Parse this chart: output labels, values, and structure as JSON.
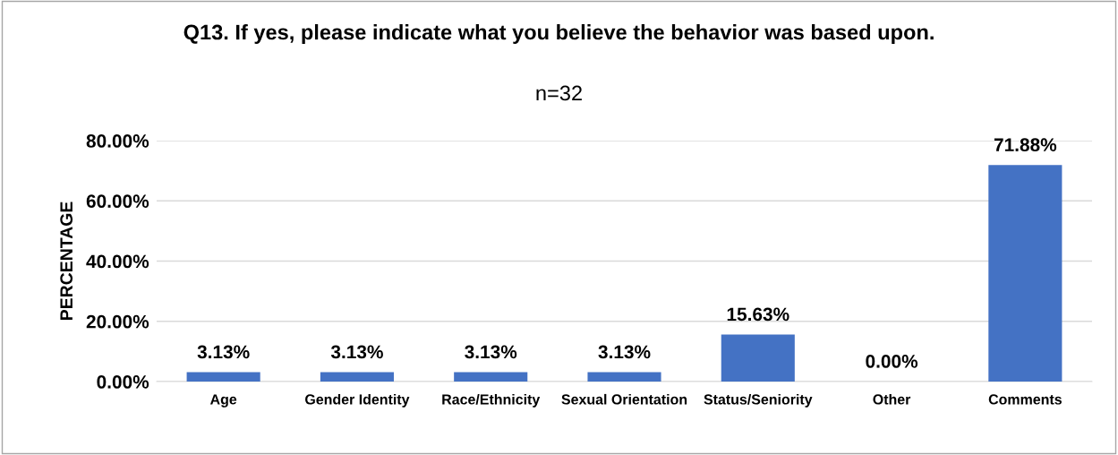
{
  "chart_data": {
    "type": "bar",
    "title": "Q13. If yes, please indicate what you believe the behavior was based upon.",
    "subtitle": "n=32",
    "ylabel": "PERCENTAGE",
    "categories": [
      "Age",
      "Gender Identity",
      "Race/Ethnicity",
      "Sexual Orientation",
      "Status/Seniority",
      "Other",
      "Comments"
    ],
    "values": [
      3.13,
      3.13,
      3.13,
      3.13,
      15.63,
      0.0,
      71.88
    ],
    "value_labels": [
      "3.13%",
      "3.13%",
      "3.13%",
      "3.13%",
      "15.63%",
      "0.00%",
      "71.88%"
    ],
    "color": "#4472c4",
    "ylim": [
      0,
      80
    ],
    "yticks": [
      {
        "value": 0,
        "label": "0.00%"
      },
      {
        "value": 20,
        "label": "20.00%"
      },
      {
        "value": 40,
        "label": "40.00%"
      },
      {
        "value": 60,
        "label": "60.00%"
      },
      {
        "value": 80,
        "label": "80.00%"
      }
    ],
    "grid": "y",
    "legend": false
  }
}
